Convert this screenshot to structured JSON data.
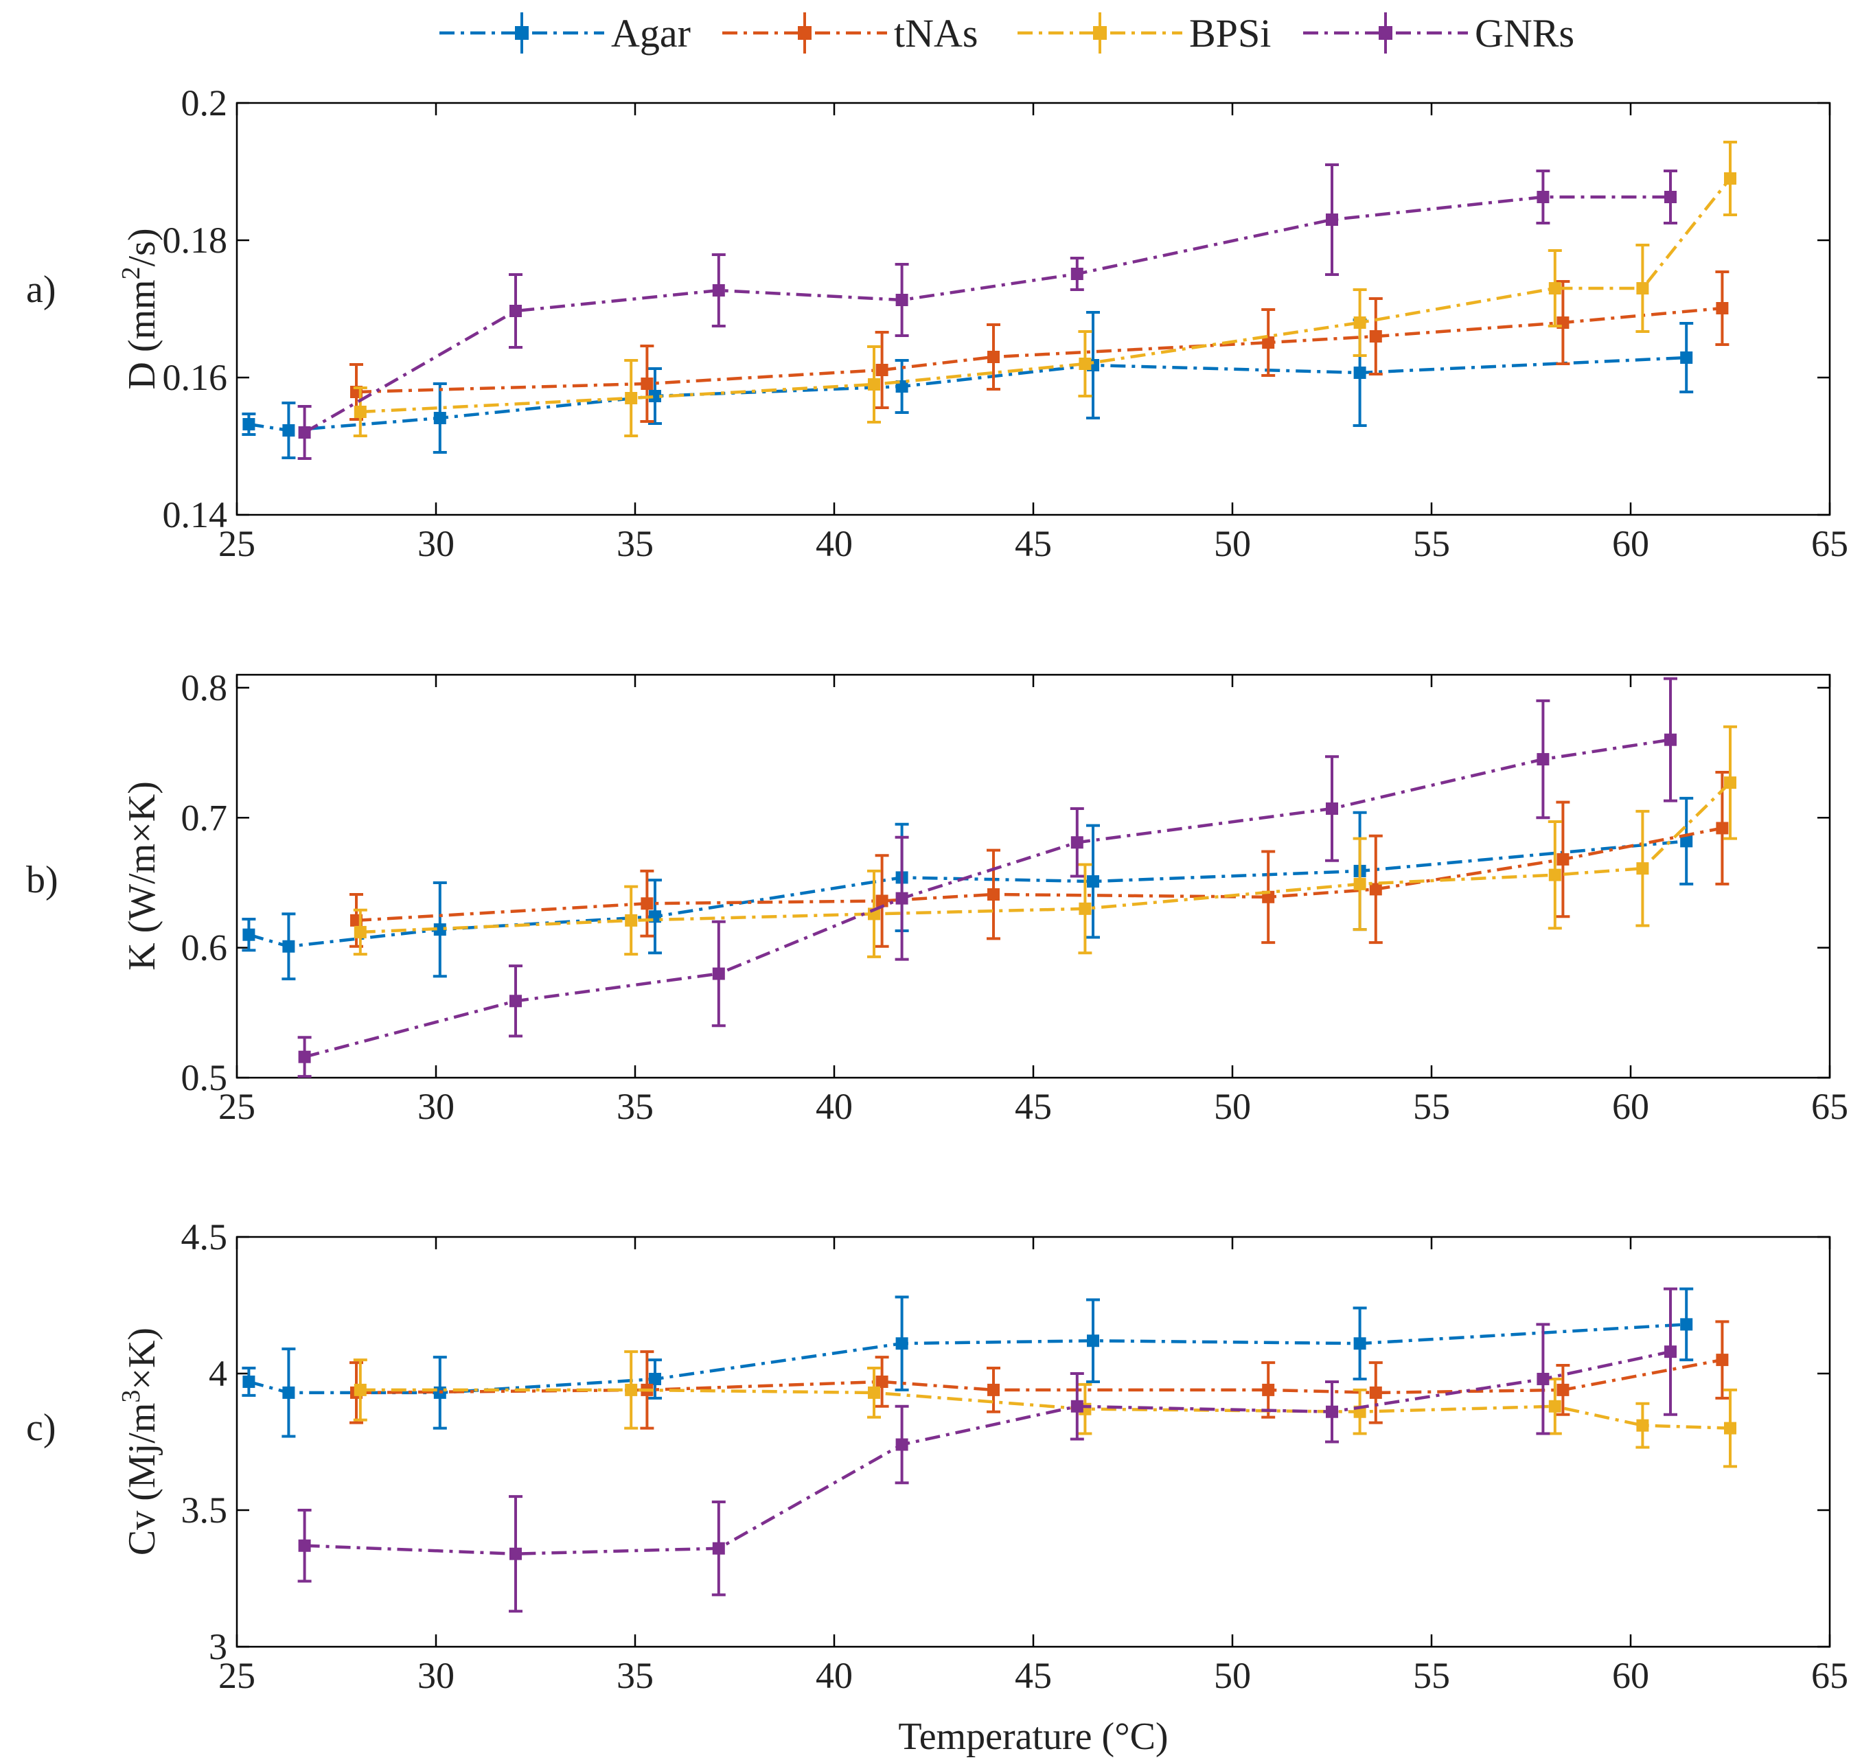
{
  "legend": [
    {
      "name": "Agar",
      "color": "#0072BD"
    },
    {
      "name": "tNAs",
      "color": "#D95319"
    },
    {
      "name": "BPSi",
      "color": "#EDB120"
    },
    {
      "name": "GNRs",
      "color": "#7E2F8E"
    }
  ],
  "chart_data": [
    {
      "type": "line",
      "panel_label": "a)",
      "ylabel_parts": [
        "D (mm",
        "2",
        "/s)"
      ],
      "xlabel": "",
      "xlim": [
        25,
        65
      ],
      "ylim": [
        0.14,
        0.2
      ],
      "xticks": [
        "25",
        "30",
        "35",
        "40",
        "45",
        "50",
        "55",
        "60",
        "65"
      ],
      "yticks": [
        "0.14",
        "0.16",
        "0.18",
        "0.2"
      ],
      "series": [
        {
          "name": "Agar",
          "x": [
            25.3,
            26.3,
            30.1,
            35.5,
            41.7,
            46.5,
            53.2,
            61.4
          ],
          "y": [
            0.1532,
            0.1523,
            0.1541,
            0.1573,
            0.1587,
            0.1618,
            0.1607,
            0.1629
          ],
          "err": [
            0.0015,
            0.004,
            0.005,
            0.004,
            0.0038,
            0.0077,
            0.0077,
            0.005
          ]
        },
        {
          "name": "tNAs",
          "x": [
            28.0,
            35.3,
            41.2,
            44.0,
            50.9,
            53.6,
            58.3,
            62.3
          ],
          "y": [
            0.1579,
            0.1591,
            0.1611,
            0.163,
            0.1651,
            0.166,
            0.168,
            0.1701
          ],
          "err": [
            0.004,
            0.0055,
            0.0055,
            0.0047,
            0.0048,
            0.0055,
            0.006,
            0.0053
          ]
        },
        {
          "name": "BPSi",
          "x": [
            28.1,
            34.9,
            41.0,
            46.3,
            53.2,
            58.1,
            60.3,
            62.5
          ],
          "y": [
            0.155,
            0.157,
            0.159,
            0.162,
            0.168,
            0.173,
            0.173,
            0.189
          ],
          "err": [
            0.0035,
            0.0055,
            0.0055,
            0.0047,
            0.0048,
            0.0055,
            0.0063,
            0.0053
          ]
        },
        {
          "name": "GNRs",
          "x": [
            26.7,
            32.0,
            37.1,
            41.7,
            46.1,
            52.5,
            57.8,
            61.0
          ],
          "y": [
            0.152,
            0.1697,
            0.1727,
            0.1713,
            0.1751,
            0.183,
            0.1863,
            0.1863
          ],
          "err": [
            0.0038,
            0.0053,
            0.0052,
            0.0052,
            0.0023,
            0.008,
            0.0038,
            0.0038
          ]
        }
      ]
    },
    {
      "type": "line",
      "panel_label": "b)",
      "ylabel_parts": [
        "K (W/m×K)"
      ],
      "xlabel": "",
      "xlim": [
        25,
        65
      ],
      "ylim": [
        0.5,
        0.81
      ],
      "xticks": [
        "25",
        "30",
        "35",
        "40",
        "45",
        "50",
        "55",
        "60",
        "65"
      ],
      "yticks": [
        "0.5",
        "0.6",
        "0.7",
        "0.8"
      ],
      "series": [
        {
          "name": "Agar",
          "x": [
            25.3,
            26.3,
            30.1,
            35.5,
            41.7,
            46.5,
            53.2,
            61.4
          ],
          "y": [
            0.61,
            0.601,
            0.614,
            0.624,
            0.654,
            0.651,
            0.659,
            0.682
          ],
          "err": [
            0.012,
            0.025,
            0.036,
            0.028,
            0.041,
            0.043,
            0.045,
            0.033
          ]
        },
        {
          "name": "tNAs",
          "x": [
            28.0,
            35.3,
            41.2,
            44.0,
            50.9,
            53.6,
            58.3,
            62.3
          ],
          "y": [
            0.621,
            0.634,
            0.636,
            0.641,
            0.639,
            0.645,
            0.668,
            0.692
          ],
          "err": [
            0.02,
            0.025,
            0.035,
            0.034,
            0.035,
            0.041,
            0.044,
            0.043
          ]
        },
        {
          "name": "BPSi",
          "x": [
            28.1,
            34.9,
            41.0,
            46.3,
            53.2,
            58.1,
            60.3,
            62.5
          ],
          "y": [
            0.612,
            0.621,
            0.626,
            0.63,
            0.649,
            0.656,
            0.661,
            0.727
          ],
          "err": [
            0.017,
            0.026,
            0.033,
            0.034,
            0.035,
            0.041,
            0.044,
            0.043
          ]
        },
        {
          "name": "GNRs",
          "x": [
            26.7,
            32.0,
            37.1,
            41.7,
            46.1,
            52.5,
            57.8,
            61.0
          ],
          "y": [
            0.516,
            0.559,
            0.58,
            0.638,
            0.681,
            0.707,
            0.745,
            0.76
          ],
          "err": [
            0.015,
            0.027,
            0.04,
            0.047,
            0.026,
            0.04,
            0.045,
            0.047
          ]
        }
      ]
    },
    {
      "type": "line",
      "panel_label": "c)",
      "ylabel_parts": [
        "Cv (Mj/m",
        "3",
        "×K)"
      ],
      "xlabel": "Temperature (°C)",
      "xlim": [
        25,
        65
      ],
      "ylim": [
        3.0,
        4.5
      ],
      "xticks": [
        "25",
        "30",
        "35",
        "40",
        "45",
        "50",
        "55",
        "60",
        "65"
      ],
      "yticks": [
        "3",
        "3.5",
        "4",
        "4.5"
      ],
      "series": [
        {
          "name": "Agar",
          "x": [
            25.3,
            26.3,
            30.1,
            35.5,
            41.7,
            46.5,
            53.2,
            61.4
          ],
          "y": [
            3.97,
            3.93,
            3.93,
            3.98,
            4.11,
            4.12,
            4.11,
            4.18
          ],
          "err": [
            0.05,
            0.16,
            0.13,
            0.07,
            0.17,
            0.15,
            0.13,
            0.13
          ]
        },
        {
          "name": "tNAs",
          "x": [
            28.0,
            35.3,
            41.2,
            44.0,
            50.9,
            53.6,
            58.3,
            62.3
          ],
          "y": [
            3.93,
            3.94,
            3.97,
            3.94,
            3.94,
            3.93,
            3.94,
            4.05
          ],
          "err": [
            0.11,
            0.14,
            0.09,
            0.08,
            0.1,
            0.11,
            0.09,
            0.14
          ]
        },
        {
          "name": "BPSi",
          "x": [
            28.1,
            34.9,
            41.0,
            46.3,
            53.2,
            58.1,
            60.3,
            62.5
          ],
          "y": [
            3.94,
            3.94,
            3.93,
            3.87,
            3.86,
            3.88,
            3.81,
            3.8
          ],
          "err": [
            0.11,
            0.14,
            0.09,
            0.09,
            0.08,
            0.1,
            0.08,
            0.14
          ]
        },
        {
          "name": "GNRs",
          "x": [
            26.7,
            32.0,
            37.1,
            41.7,
            46.1,
            52.5,
            57.8,
            61.0
          ],
          "y": [
            3.37,
            3.34,
            3.36,
            3.74,
            3.88,
            3.86,
            3.98,
            4.08
          ],
          "err": [
            0.13,
            0.21,
            0.17,
            0.14,
            0.12,
            0.11,
            0.2,
            0.23
          ]
        }
      ]
    }
  ]
}
